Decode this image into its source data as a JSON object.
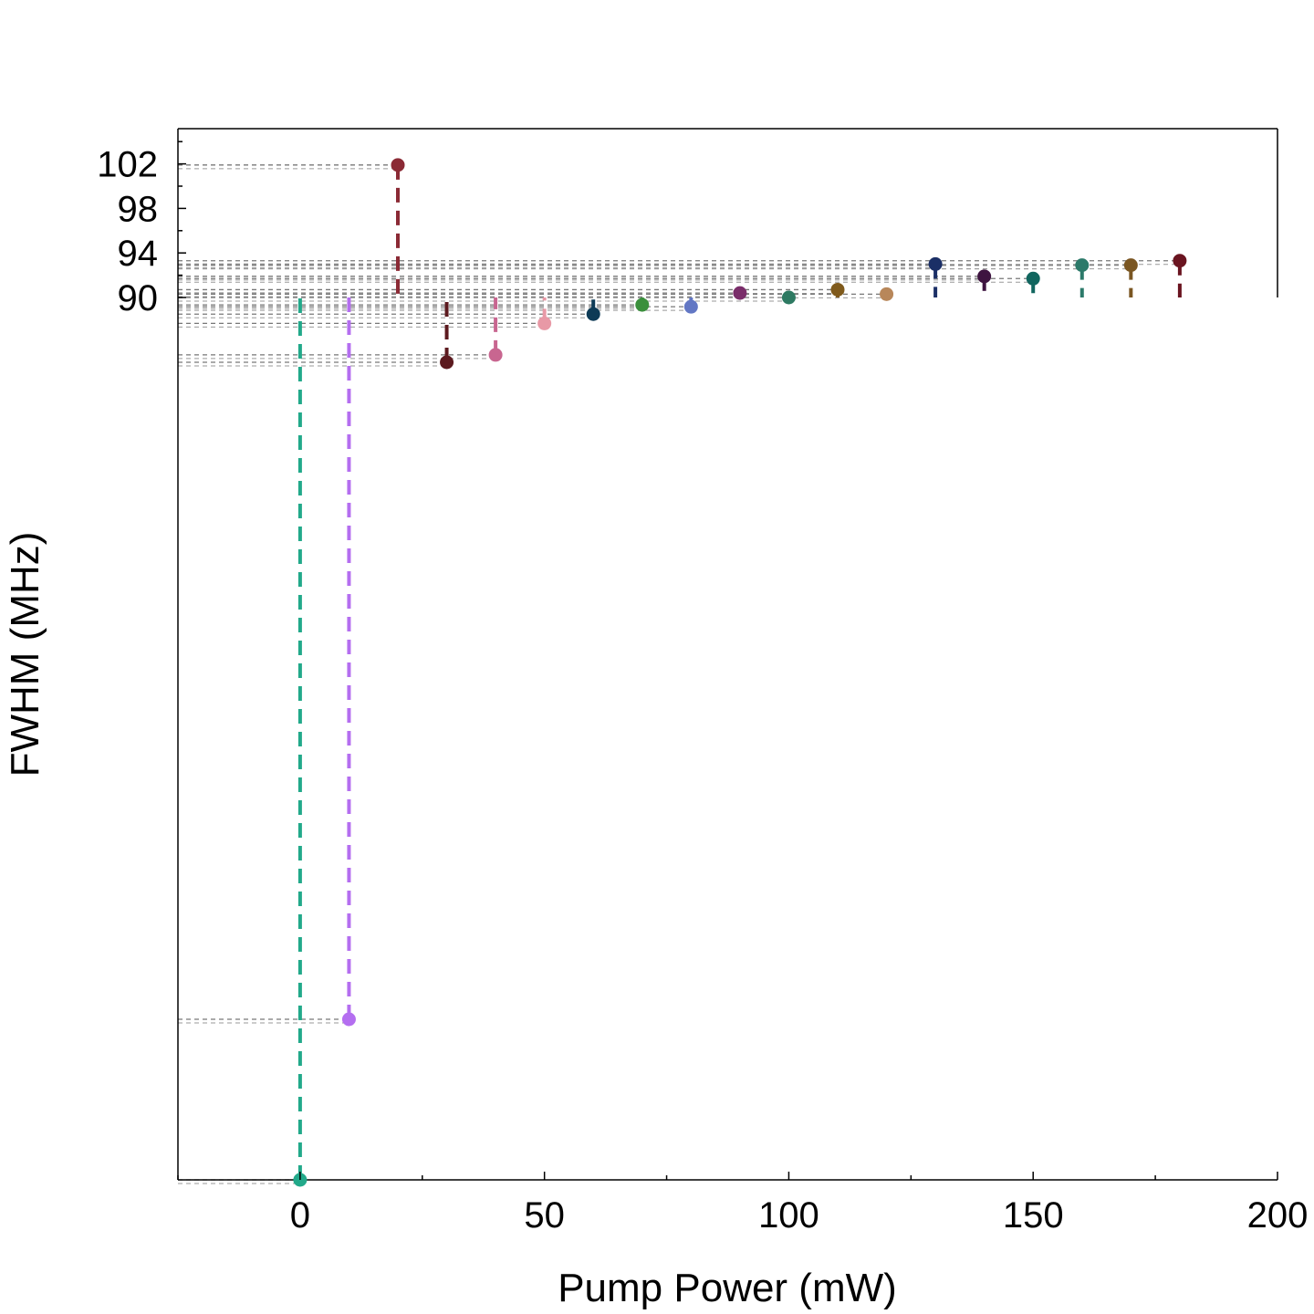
{
  "chart_data": {
    "type": "scatter",
    "title": "",
    "xlabel": "Pump Power (mW)",
    "ylabel": "FWHM (MHz)",
    "xlim": [
      -25,
      200
    ],
    "x_ticks": [
      0,
      50,
      100,
      150,
      200
    ],
    "y_ticks": [
      90,
      94,
      98,
      102
    ],
    "y_axis_note": "broken y-axis: linear scale from 90 to 104 above the break; compressed region below 90 down to the lowest point",
    "grid": false,
    "legend": "none",
    "reference_baseline": 90,
    "points": [
      {
        "x": 0,
        "y": 18,
        "color": "#22a98a"
      },
      {
        "x": 10,
        "y": 35,
        "color": "#b46ef0"
      },
      {
        "x": 20,
        "y": 101.9,
        "color": "#8b2a35"
      },
      {
        "x": 30,
        "y": 86.5,
        "color": "#5c1a1f"
      },
      {
        "x": 40,
        "y": 86.9,
        "color": "#c86690"
      },
      {
        "x": 50,
        "y": 88.6,
        "color": "#e899a6"
      },
      {
        "x": 60,
        "y": 89.1,
        "color": "#0e3b56"
      },
      {
        "x": 70,
        "y": 89.6,
        "color": "#3a8f3c"
      },
      {
        "x": 80,
        "y": 89.5,
        "color": "#6277c4"
      },
      {
        "x": 90,
        "y": 90.4,
        "color": "#7a2d6a"
      },
      {
        "x": 100,
        "y": 90.0,
        "color": "#2e7a62"
      },
      {
        "x": 110,
        "y": 90.7,
        "color": "#7f5a1c"
      },
      {
        "x": 120,
        "y": 90.3,
        "color": "#b8875a"
      },
      {
        "x": 130,
        "y": 93.0,
        "color": "#1b2f66"
      },
      {
        "x": 140,
        "y": 91.9,
        "color": "#3e1440"
      },
      {
        "x": 150,
        "y": 91.7,
        "color": "#11665f"
      },
      {
        "x": 160,
        "y": 92.9,
        "color": "#2c7a6a"
      },
      {
        "x": 170,
        "y": 92.9,
        "color": "#7a5622"
      },
      {
        "x": 180,
        "y": 93.3,
        "color": "#6a1420"
      }
    ]
  }
}
